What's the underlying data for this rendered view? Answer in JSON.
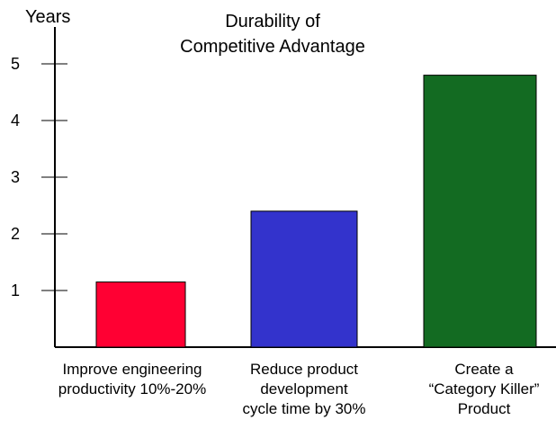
{
  "chart_data": {
    "type": "bar",
    "title_lines": [
      "Durability of",
      "Competitive Advantage"
    ],
    "ylabel": "Years",
    "xlabel": "",
    "ylim": [
      0,
      5.5
    ],
    "yticks": [
      1,
      2,
      3,
      4,
      5
    ],
    "grid": false,
    "legend": "none",
    "categories": [
      [
        "Improve engineering",
        "productivity 10%-20%"
      ],
      [
        "Reduce product",
        "development",
        "cycle time by 30%"
      ],
      [
        "Create a",
        "“Category Killer”",
        "Product"
      ]
    ],
    "values": [
      1.15,
      2.4,
      4.8
    ],
    "colors": [
      "#ff0033",
      "#3333cc",
      "#136b22"
    ]
  }
}
